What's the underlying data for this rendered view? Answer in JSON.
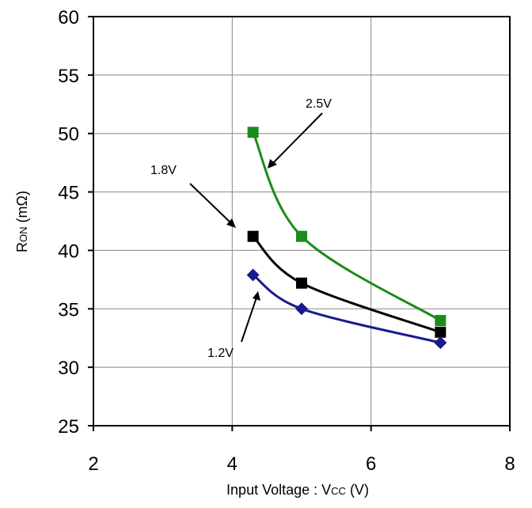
{
  "chart_data": {
    "type": "line",
    "xlim": [
      2,
      8
    ],
    "ylim": [
      25,
      60
    ],
    "x_ticks": [
      "2",
      "4",
      "6",
      "8"
    ],
    "y_ticks": [
      "25",
      "30",
      "35",
      "40",
      "45",
      "50",
      "55",
      "60"
    ],
    "xlabel": {
      "main": "Input Voltage : V",
      "sub": "CC",
      "unit": " (V)"
    },
    "ylabel": {
      "main": "R",
      "sub": "ON",
      "unit": " (mΩ)"
    },
    "grid": true,
    "series": [
      {
        "name": "2.5V",
        "color": "#1a8c1a",
        "marker": "square",
        "x": [
          4.3,
          5.0,
          7.0
        ],
        "y": [
          50.1,
          41.2,
          34.0
        ]
      },
      {
        "name": "1.8V",
        "color": "#000000",
        "marker": "square",
        "x": [
          4.3,
          5.0,
          7.0
        ],
        "y": [
          41.2,
          37.2,
          33.0
        ]
      },
      {
        "name": "1.2V",
        "color": "#1a1a8c",
        "marker": "diamond",
        "x": [
          4.3,
          5.0,
          7.0
        ],
        "y": [
          37.9,
          35.0,
          32.1
        ]
      }
    ],
    "annotations": [
      {
        "text": "2.5V",
        "series": "2.5V"
      },
      {
        "text": "1.8V",
        "series": "1.8V"
      },
      {
        "text": "1.2V",
        "series": "1.2V"
      }
    ]
  }
}
